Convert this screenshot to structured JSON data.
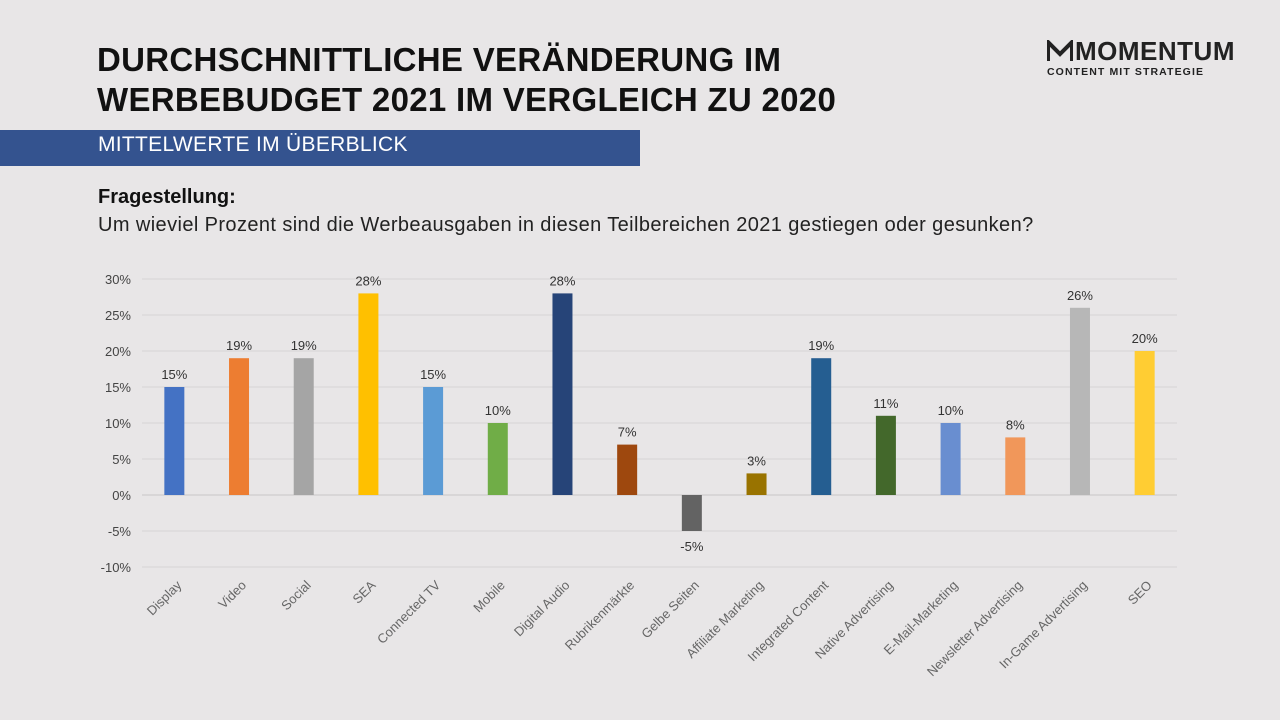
{
  "header": {
    "title_line1": "DURCHSCHNITTLICHE VERÄNDERUNG IM",
    "title_line2": "WERBEBUDGET 2021 IM VERGLEICH ZU 2020",
    "subtitle": "MITTELWERTE IM ÜBERBLICK"
  },
  "logo": {
    "name": "MOMENTUM",
    "tagline": "CONTENT MIT STRATEGIE"
  },
  "question": {
    "label": "Fragestellung:",
    "text": "Um wieviel Prozent sind die Werbeausgaben in diesen Teilbereichen 2021 gestiegen oder gesunken?"
  },
  "colors": {
    "background": "#e8e6e7",
    "band": "#34538f"
  },
  "chart_data": {
    "type": "bar",
    "title": "",
    "xlabel": "",
    "ylabel": "",
    "ylim": [
      -10,
      30
    ],
    "yticks": [
      30,
      25,
      20,
      15,
      10,
      5,
      0,
      -5,
      -10
    ],
    "ytick_labels": [
      "30%",
      "25%",
      "20%",
      "15%",
      "10%",
      "5%",
      "0%",
      "-5%",
      "-10%"
    ],
    "grid": true,
    "categories": [
      "Display",
      "Video",
      "Social",
      "SEA",
      "Connected TV",
      "Mobile",
      "Digital Audio",
      "Rubrikenmärkte",
      "Gelbe Seiten",
      "Affiliate Marketing",
      "Integrated Content",
      "Native Advertising",
      "E-Mail-Marketing",
      "Newsletter Advertising",
      "In-Game Advertising",
      "SEO"
    ],
    "values": [
      15,
      19,
      19,
      28,
      15,
      10,
      28,
      7,
      -5,
      3,
      19,
      11,
      10,
      8,
      26,
      20
    ],
    "value_labels": [
      "15%",
      "19%",
      "19%",
      "28%",
      "15%",
      "10%",
      "28%",
      "7%",
      "-5%",
      "3%",
      "19%",
      "11%",
      "10%",
      "8%",
      "26%",
      "20%"
    ],
    "colors": [
      "#4472c4",
      "#ed7d31",
      "#a5a5a5",
      "#ffc000",
      "#5b9bd5",
      "#70ad47",
      "#264478",
      "#9e480e",
      "#636363",
      "#997300",
      "#255e91",
      "#43682b",
      "#698ed0",
      "#f1975a",
      "#b7b7b7",
      "#ffcd33"
    ]
  }
}
